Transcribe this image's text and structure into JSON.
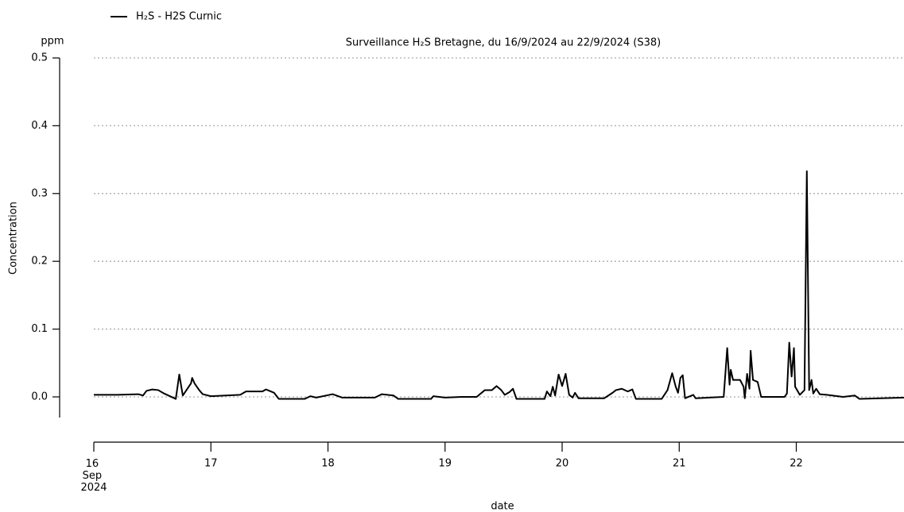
{
  "chart_data": {
    "type": "line",
    "title": "Surveillance H₂S Bretagne, du 16/9/2024 au 22/9/2024 (S38)",
    "y_unit": "ppm",
    "y_label": "Concentration",
    "x_label": "date",
    "xlim": [
      16,
      22.92
    ],
    "ylim": [
      -0.03,
      0.5
    ],
    "xticks": [
      {
        "value": 16,
        "label": "16 Sep 2024"
      },
      17,
      18,
      19,
      20,
      21,
      22
    ],
    "yticks": [
      {
        "value": 0,
        "label": "0.0"
      },
      0.1,
      0.2,
      0.3,
      0.4,
      0.5
    ],
    "grid": true,
    "legend": "top-left",
    "x": [
      16.0,
      16.2,
      16.38,
      16.42,
      16.45,
      16.5,
      16.55,
      16.6,
      16.7,
      16.73,
      16.76,
      16.83,
      16.84,
      16.86,
      16.9,
      16.93,
      17.0,
      17.25,
      17.3,
      17.44,
      17.47,
      17.54,
      17.58,
      17.8,
      17.85,
      17.9,
      18.04,
      18.12,
      18.4,
      18.46,
      18.56,
      18.6,
      18.88,
      18.9,
      19.0,
      19.14,
      19.27,
      19.34,
      19.4,
      19.44,
      19.48,
      19.51,
      19.55,
      19.58,
      19.61,
      19.85,
      19.87,
      19.9,
      19.92,
      19.94,
      19.97,
      20.0,
      20.03,
      20.06,
      20.09,
      20.11,
      20.14,
      20.36,
      20.43,
      20.46,
      20.51,
      20.56,
      20.6,
      20.63,
      20.85,
      20.9,
      20.94,
      20.97,
      20.99,
      21.01,
      21.03,
      21.05,
      21.12,
      21.14,
      21.38,
      21.41,
      21.43,
      21.44,
      21.46,
      21.52,
      21.55,
      21.56,
      21.58,
      21.6,
      21.61,
      21.63,
      21.67,
      21.7,
      21.9,
      21.92,
      21.94,
      21.96,
      21.98,
      21.99,
      22.03,
      22.07,
      22.09,
      22.11,
      22.13,
      22.145,
      22.17,
      22.2,
      22.26,
      22.4,
      22.5,
      22.54,
      22.92
    ],
    "series": [
      {
        "name": "H₂S - H2S Curnic",
        "color": "#000000",
        "values": [
          0.003,
          0.003,
          0.004,
          0.002,
          0.009,
          0.011,
          0.01,
          0.005,
          -0.003,
          0.033,
          0.002,
          0.02,
          0.028,
          0.02,
          0.01,
          0.004,
          0.001,
          0.003,
          0.008,
          0.008,
          0.011,
          0.006,
          -0.003,
          -0.003,
          0.001,
          -0.001,
          0.004,
          -0.001,
          -0.001,
          0.004,
          0.002,
          -0.003,
          -0.003,
          0.001,
          -0.001,
          0.0,
          0.0,
          0.01,
          0.01,
          0.016,
          0.01,
          0.003,
          0.007,
          0.012,
          -0.003,
          -0.003,
          0.008,
          0.001,
          0.015,
          0.002,
          0.033,
          0.016,
          0.034,
          0.003,
          -0.001,
          0.006,
          -0.002,
          -0.002,
          0.006,
          0.01,
          0.012,
          0.008,
          0.011,
          -0.003,
          -0.003,
          0.01,
          0.035,
          0.015,
          0.006,
          0.028,
          0.032,
          -0.002,
          0.003,
          -0.002,
          0.0,
          0.072,
          0.018,
          0.04,
          0.025,
          0.025,
          0.015,
          -0.002,
          0.034,
          0.012,
          0.068,
          0.025,
          0.022,
          0.0,
          0.0,
          0.005,
          0.08,
          0.03,
          0.072,
          0.015,
          0.003,
          0.01,
          0.333,
          0.01,
          0.025,
          0.005,
          0.012,
          0.004,
          0.003,
          0.0,
          0.002,
          -0.003,
          -0.001
        ]
      }
    ]
  }
}
